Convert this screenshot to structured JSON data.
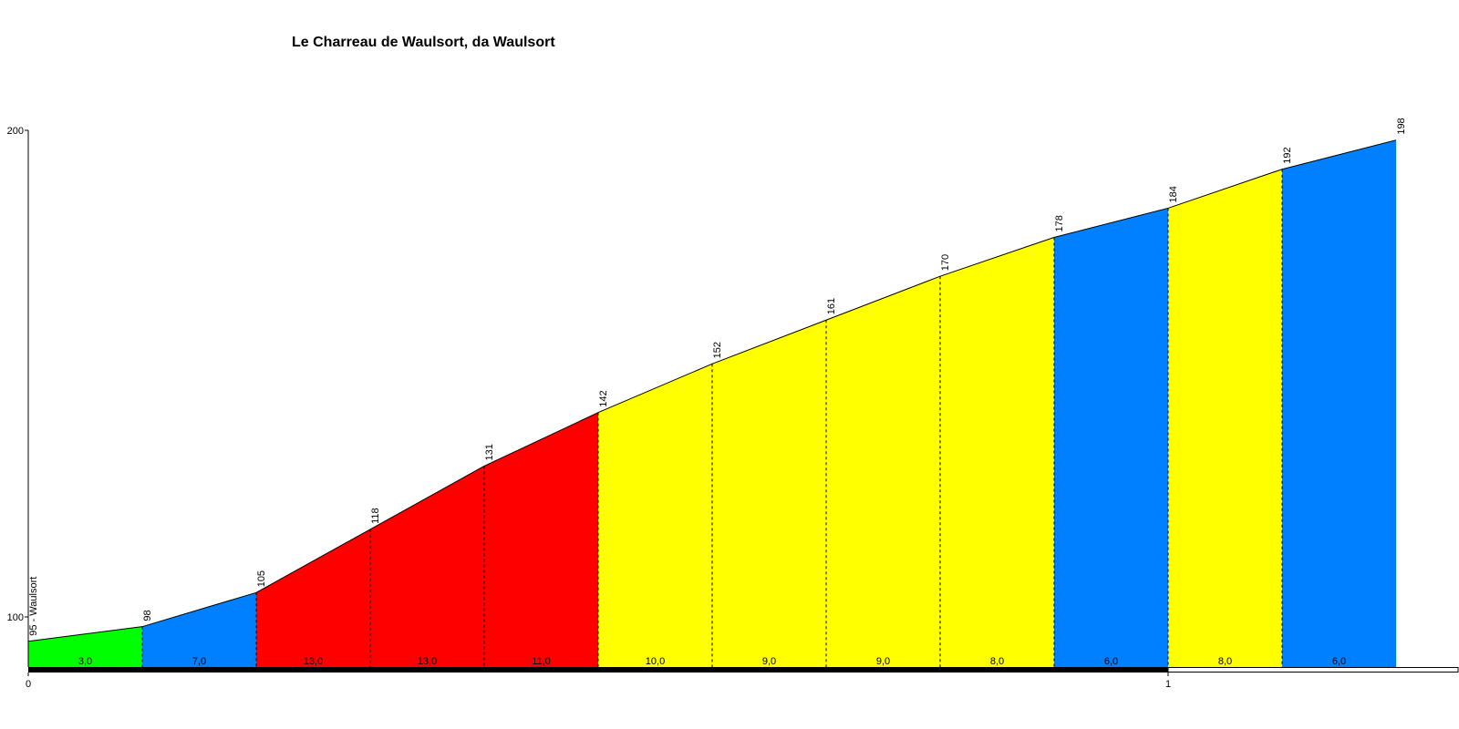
{
  "chart_data": {
    "type": "area",
    "title": "Le Charreau de Waulsort, da Waulsort",
    "xlabel": "",
    "ylabel": "",
    "x_ticks": [
      0,
      1
    ],
    "y_ticks": [
      100,
      200
    ],
    "points": [
      {
        "x": 0.0,
        "elevation": 95,
        "label": "95 - Waulsort"
      },
      {
        "x": 0.1,
        "elevation": 98,
        "label": "98"
      },
      {
        "x": 0.2,
        "elevation": 105,
        "label": "105"
      },
      {
        "x": 0.3,
        "elevation": 118,
        "label": "118"
      },
      {
        "x": 0.4,
        "elevation": 131,
        "label": "131"
      },
      {
        "x": 0.5,
        "elevation": 142,
        "label": "142"
      },
      {
        "x": 0.6,
        "elevation": 152,
        "label": "152"
      },
      {
        "x": 0.7,
        "elevation": 161,
        "label": "161"
      },
      {
        "x": 0.8,
        "elevation": 170,
        "label": "170"
      },
      {
        "x": 0.9,
        "elevation": 178,
        "label": "178"
      },
      {
        "x": 1.0,
        "elevation": 184,
        "label": "184"
      },
      {
        "x": 1.1,
        "elevation": 192,
        "label": "192"
      },
      {
        "x": 1.2,
        "elevation": 198,
        "label": "198"
      }
    ],
    "segments": [
      {
        "gradient": "3,0",
        "color": "#00FF00"
      },
      {
        "gradient": "7,0",
        "color": "#0080FF"
      },
      {
        "gradient": "13,0",
        "color": "#FF0000"
      },
      {
        "gradient": "13,0",
        "color": "#FF0000"
      },
      {
        "gradient": "11,0",
        "color": "#FF0000"
      },
      {
        "gradient": "10,0",
        "color": "#FFFF00"
      },
      {
        "gradient": "9,0",
        "color": "#FFFF00"
      },
      {
        "gradient": "9,0",
        "color": "#FFFF00"
      },
      {
        "gradient": "8,0",
        "color": "#FFFF00"
      },
      {
        "gradient": "6,0",
        "color": "#0080FF"
      },
      {
        "gradient": "8,0",
        "color": "#FFFF00"
      },
      {
        "gradient": "6,0",
        "color": "#0080FF"
      }
    ],
    "xlim": [
      0,
      1.2
    ],
    "ylim_visible": [
      89,
      200
    ],
    "grid": false
  }
}
